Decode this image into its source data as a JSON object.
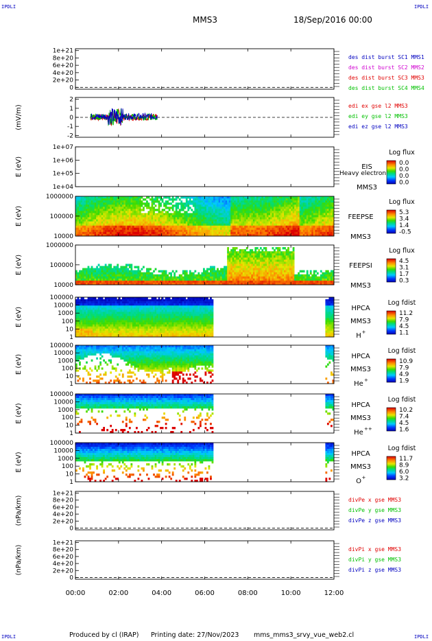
{
  "header": {
    "corner_label": "IPDLI",
    "spacecraft": "MMS3",
    "date": "18/Sep/2016 00:00"
  },
  "footer": {
    "produced_by": "Produced by cl (IRAP)",
    "printing_date": "Printing date: 27/Nov/2023",
    "script": "mms_mms3_srvy_vue_web2.cl"
  },
  "colors": {
    "red": "#e00000",
    "green": "#00c000",
    "blue": "#0000c0",
    "magenta": "#d000d0"
  },
  "chart_data": [
    {
      "type": "line",
      "panel": "des-dist-burst",
      "ytick_labels": [
        "1e+21",
        "8e+20",
        "6e+20",
        "4e+20",
        "2e+20",
        "0"
      ],
      "yticks": [
        1e+21,
        8e+20,
        6e+20,
        4e+20,
        2e+20,
        0
      ],
      "ylim": [
        -5e+19,
        1.05e+21
      ],
      "ylabel": "",
      "series": [
        {
          "name": "des dist burst SC1 MMS1",
          "color": "#0000c0",
          "values": []
        },
        {
          "name": "des dist burst SC2 MMS2",
          "color": "#d000d0",
          "values": []
        },
        {
          "name": "des dist burst SC3 MMS3",
          "color": "#e00000",
          "values": []
        },
        {
          "name": "des dist burst SC4 MMS4",
          "color": "#00c000",
          "values": []
        }
      ],
      "dashed_zero": true
    },
    {
      "type": "line",
      "panel": "edi-e-gse",
      "ytick_labels": [
        "2",
        "1",
        "0",
        "-1",
        "-2"
      ],
      "yticks": [
        2,
        1,
        0,
        -1,
        -2
      ],
      "ylim": [
        -2.2,
        2.2
      ],
      "ylabel": "(mV/m)",
      "x_range_hours": [
        0.7,
        3.8
      ],
      "amplitude": [
        0.6,
        1.6
      ],
      "series": [
        {
          "name": "edi ex gse l2 MMS3",
          "color": "#e00000"
        },
        {
          "name": "edi ey gse l2 MMS3",
          "color": "#00c000"
        },
        {
          "name": "edi ez gse l2 MMS3",
          "color": "#0000c0"
        }
      ],
      "dashed_zero": true
    },
    {
      "type": "heatmap",
      "panel": "eis",
      "ytick_labels": [
        "1e+07",
        "1e+06",
        "1e+05",
        "1e+04"
      ],
      "log_range": [
        4,
        7
      ],
      "ylabel": "E (eV)",
      "instrument": "EIS",
      "instrument_sub": "Heavy electron to",
      "spacecraft": "MMS3",
      "colorbar_title": "Log flux",
      "colorbar_ticks": [
        "0.0",
        "0.0",
        "0.0",
        "0.0"
      ],
      "empty": true
    },
    {
      "type": "heatmap",
      "panel": "feepse",
      "ytick_labels": [
        "1000000",
        "100000",
        "10000"
      ],
      "log_range": [
        4,
        6.05
      ],
      "ylabel": "E (eV)",
      "instrument": "FEEPSE",
      "spacecraft": "MMS3",
      "colorbar_title": "Log flux",
      "colorbar_ticks": [
        "5.3",
        "3.4",
        "1.4",
        "-0.5"
      ]
    },
    {
      "type": "heatmap",
      "panel": "feepsi",
      "ytick_labels": [
        "1000000",
        "100000",
        "10000"
      ],
      "log_range": [
        4,
        6.05
      ],
      "ylabel": "E (eV)",
      "instrument": "FEEPSI",
      "spacecraft": "MMS3",
      "colorbar_title": "Log flux",
      "colorbar_ticks": [
        "4.5",
        "3.1",
        "1.7",
        "0.3"
      ]
    },
    {
      "type": "heatmap",
      "panel": "hpca-h",
      "ytick_labels": [
        "100000",
        "10000",
        "1000",
        "100",
        "10",
        "1"
      ],
      "log_range": [
        0,
        5
      ],
      "ylabel": "E (eV)",
      "instrument": "HPCA",
      "spacecraft": "MMS3",
      "species": "H",
      "species_sup": "+",
      "colorbar_title": "Log fdist",
      "colorbar_ticks": [
        "11.2",
        "7.9",
        "4.5",
        "1.1"
      ],
      "data_windows_hours": [
        [
          0,
          6.4
        ],
        [
          11.6,
          12
        ]
      ]
    },
    {
      "type": "heatmap",
      "panel": "hpca-he",
      "ytick_labels": [
        "100000",
        "10000",
        "1000",
        "100",
        "10",
        "1"
      ],
      "log_range": [
        0,
        5
      ],
      "ylabel": "E (eV)",
      "instrument": "HPCA",
      "spacecraft": "MMS3",
      "species": "He",
      "species_sup": "+",
      "colorbar_title": "Log fdist",
      "colorbar_ticks": [
        "10.9",
        "7.9",
        "4.9",
        "1.9"
      ],
      "data_windows_hours": [
        [
          0,
          6.4
        ],
        [
          11.6,
          12
        ]
      ]
    },
    {
      "type": "heatmap",
      "panel": "hpca-he2",
      "ytick_labels": [
        "100000",
        "10000",
        "1000",
        "100",
        "10",
        "1"
      ],
      "log_range": [
        0,
        5
      ],
      "ylabel": "E (eV)",
      "instrument": "HPCA",
      "spacecraft": "MMS3",
      "species": "He",
      "species_sup": "++",
      "colorbar_title": "Log fdist",
      "colorbar_ticks": [
        "10.2",
        "7.4",
        "4.5",
        "1.6"
      ],
      "data_windows_hours": [
        [
          0,
          6.4
        ],
        [
          11.6,
          12
        ]
      ]
    },
    {
      "type": "heatmap",
      "panel": "hpca-o",
      "ytick_labels": [
        "100000",
        "10000",
        "1000",
        "100",
        "10",
        "1"
      ],
      "log_range": [
        0,
        5
      ],
      "ylabel": "E (eV)",
      "instrument": "HPCA",
      "spacecraft": "MMS3",
      "species": "O",
      "species_sup": "+",
      "colorbar_title": "Log fdist",
      "colorbar_ticks": [
        "11.7",
        "8.9",
        "6.0",
        "3.2"
      ],
      "data_windows_hours": [
        [
          0,
          6.4
        ],
        [
          11.6,
          12
        ]
      ]
    },
    {
      "type": "line",
      "panel": "divpe",
      "ytick_labels": [
        "1e+21",
        "8e+20",
        "6e+20",
        "4e+20",
        "2e+20",
        "0"
      ],
      "yticks": [
        1e+21,
        8e+20,
        6e+20,
        4e+20,
        2e+20,
        0
      ],
      "ylim": [
        -5e+19,
        1.05e+21
      ],
      "ylabel": "(nPa/km)",
      "series": [
        {
          "name": "divPe x gse MMS3",
          "color": "#e00000",
          "values": []
        },
        {
          "name": "divPe y gse MMS3",
          "color": "#00c000",
          "values": []
        },
        {
          "name": "divPe z gse MMS3",
          "color": "#0000c0",
          "values": []
        }
      ],
      "dashed_zero": true
    },
    {
      "type": "line",
      "panel": "divpi",
      "ytick_labels": [
        "1e+21",
        "8e+20",
        "6e+20",
        "4e+20",
        "2e+20",
        "0"
      ],
      "yticks": [
        1e+21,
        8e+20,
        6e+20,
        4e+20,
        2e+20,
        0
      ],
      "ylim": [
        -5e+19,
        1.05e+21
      ],
      "ylabel": "(nPa/km)",
      "series": [
        {
          "name": "divPi x gse MMS3",
          "color": "#e00000",
          "values": []
        },
        {
          "name": "divPi y gse MMS3",
          "color": "#00c000",
          "values": []
        },
        {
          "name": "divPi z gse MMS3",
          "color": "#0000c0",
          "values": []
        }
      ],
      "dashed_zero": true
    }
  ],
  "time_axis": {
    "range_hours": [
      0,
      12
    ],
    "tick_hours": [
      0,
      2,
      4,
      6,
      8,
      10,
      12
    ],
    "tick_labels": [
      "00:00",
      "02:00",
      "04:00",
      "06:00",
      "08:00",
      "10:00",
      "12:00"
    ]
  }
}
